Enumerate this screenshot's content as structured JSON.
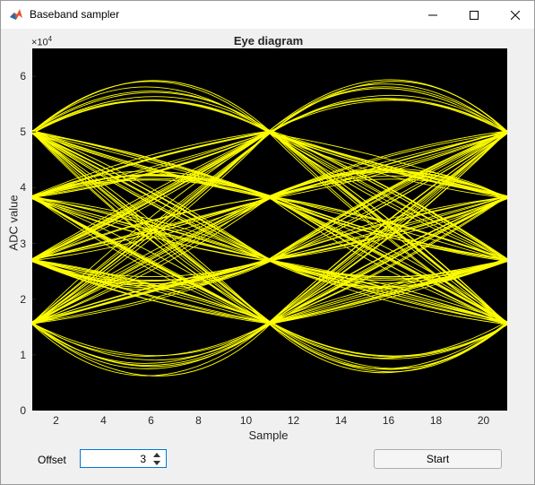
{
  "window": {
    "title": "Baseband sampler",
    "icon": "matlab-icon",
    "controls": [
      "minimize-icon",
      "maximize-icon",
      "close-icon"
    ]
  },
  "chart_data": {
    "type": "line",
    "title": "Eye diagram",
    "xlabel": "Sample",
    "ylabel": "ADC value",
    "y_exponent_label": "×10",
    "y_exponent_power": "4",
    "xlim": [
      1,
      21
    ],
    "ylim": [
      0,
      65000
    ],
    "xticks": [
      "2",
      "4",
      "6",
      "8",
      "10",
      "12",
      "14",
      "16",
      "18",
      "20"
    ],
    "yticks": [
      "0",
      "1",
      "2",
      "3",
      "4",
      "5",
      "6"
    ],
    "background_color": "#000000",
    "trace_color": "#ffff00",
    "symbol_levels": [
      15700,
      27000,
      38300,
      50000
    ],
    "eye_crossings_x": [
      1,
      11,
      21
    ],
    "grid": false
  },
  "controls": {
    "offset_label": "Offset",
    "offset_value": "3",
    "start_label": "Start"
  }
}
